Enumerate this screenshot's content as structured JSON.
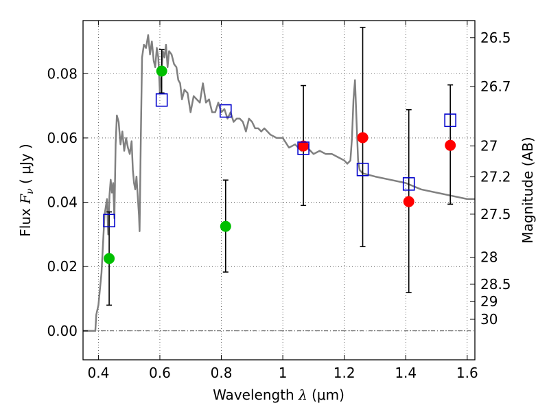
{
  "chart_data": {
    "type": "scatter",
    "xlabel_prefix": "Wavelength  ",
    "xlabel_symbol": "λ",
    "xlabel_unit": " (μm)",
    "ylabel_prefix": "Flux  ",
    "ylabel_symbol": "F",
    "ylabel_sub": "ν",
    "ylabel_unit": "  ( μJy )",
    "y2label": "Magnitude (AB)",
    "xlim": [
      0.35,
      1.625
    ],
    "ylim": [
      -0.009,
      0.0965
    ],
    "xticks": [
      0.4,
      0.6,
      0.8,
      1.0,
      1.2,
      1.4,
      1.6
    ],
    "xtick_labels": [
      "0.4",
      "0.6",
      "0.8",
      "1",
      "1.2",
      "1.4",
      "1.6"
    ],
    "yticks": [
      0.0,
      0.02,
      0.04,
      0.06,
      0.08
    ],
    "ytick_labels": [
      "0.00",
      "0.02",
      "0.04",
      "0.06",
      "0.08"
    ],
    "y2ticks": [
      {
        "label": "26.5",
        "flux": 0.0912
      },
      {
        "label": "26.7",
        "flux": 0.076
      },
      {
        "label": "27",
        "flux": 0.0575
      },
      {
        "label": "27.2",
        "flux": 0.0479
      },
      {
        "label": "27.5",
        "flux": 0.0363
      },
      {
        "label": "28",
        "flux": 0.0229
      },
      {
        "label": "28.5",
        "flux": 0.0145
      },
      {
        "label": "29",
        "flux": 0.0091
      },
      {
        "label": "30",
        "flux": 0.0036
      }
    ],
    "grid": true,
    "series": [
      {
        "name": "model SED",
        "kind": "line",
        "color": "#808080",
        "x": [
          0.35,
          0.39,
          0.393,
          0.4,
          0.41,
          0.42,
          0.428,
          0.432,
          0.436,
          0.44,
          0.444,
          0.448,
          0.452,
          0.456,
          0.46,
          0.466,
          0.472,
          0.478,
          0.484,
          0.49,
          0.496,
          0.502,
          0.508,
          0.512,
          0.516,
          0.52,
          0.524,
          0.528,
          0.532,
          0.534,
          0.538,
          0.542,
          0.548,
          0.555,
          0.562,
          0.568,
          0.574,
          0.58,
          0.585,
          0.59,
          0.595,
          0.6,
          0.605,
          0.61,
          0.615,
          0.62,
          0.625,
          0.63,
          0.638,
          0.646,
          0.654,
          0.66,
          0.666,
          0.672,
          0.68,
          0.69,
          0.7,
          0.71,
          0.72,
          0.73,
          0.74,
          0.75,
          0.76,
          0.77,
          0.78,
          0.79,
          0.8,
          0.81,
          0.82,
          0.83,
          0.84,
          0.85,
          0.86,
          0.87,
          0.88,
          0.89,
          0.9,
          0.91,
          0.92,
          0.93,
          0.94,
          0.95,
          0.96,
          0.98,
          1.0,
          1.02,
          1.04,
          1.06,
          1.08,
          1.1,
          1.12,
          1.14,
          1.16,
          1.18,
          1.2,
          1.21,
          1.22,
          1.225,
          1.23,
          1.235,
          1.24,
          1.245,
          1.25,
          1.26,
          1.3,
          1.35,
          1.4,
          1.45,
          1.5,
          1.55,
          1.6,
          1.625
        ],
        "y": [
          0.0,
          0.0,
          0.005,
          0.008,
          0.018,
          0.036,
          0.041,
          0.03,
          0.042,
          0.047,
          0.043,
          0.046,
          0.035,
          0.058,
          0.067,
          0.065,
          0.058,
          0.062,
          0.056,
          0.06,
          0.057,
          0.055,
          0.059,
          0.05,
          0.046,
          0.044,
          0.048,
          0.042,
          0.036,
          0.031,
          0.06,
          0.085,
          0.089,
          0.088,
          0.092,
          0.086,
          0.09,
          0.084,
          0.082,
          0.088,
          0.085,
          0.074,
          0.08,
          0.087,
          0.085,
          0.089,
          0.082,
          0.087,
          0.086,
          0.083,
          0.082,
          0.078,
          0.077,
          0.072,
          0.075,
          0.074,
          0.068,
          0.073,
          0.072,
          0.071,
          0.077,
          0.071,
          0.072,
          0.068,
          0.068,
          0.071,
          0.068,
          0.069,
          0.066,
          0.068,
          0.065,
          0.066,
          0.066,
          0.065,
          0.062,
          0.066,
          0.065,
          0.063,
          0.063,
          0.062,
          0.063,
          0.062,
          0.061,
          0.06,
          0.06,
          0.057,
          0.058,
          0.056,
          0.057,
          0.055,
          0.056,
          0.055,
          0.055,
          0.054,
          0.053,
          0.052,
          0.053,
          0.06,
          0.072,
          0.078,
          0.065,
          0.053,
          0.05,
          0.049,
          0.048,
          0.047,
          0.046,
          0.044,
          0.043,
          0.042,
          0.041,
          0.041
        ]
      },
      {
        "name": "observed (green)",
        "kind": "points",
        "color": "#00bf00",
        "x": [
          0.435,
          0.606,
          0.814
        ],
        "y": [
          0.0225,
          0.0808,
          0.0325
        ],
        "yerr_low": [
          0.008,
          0.074,
          0.0183
        ],
        "yerr_high": [
          0.037,
          0.0875,
          0.0469
        ]
      },
      {
        "name": "observed (red)",
        "kind": "points",
        "color": "#ff0000",
        "x": [
          1.067,
          1.26,
          1.41,
          1.545
        ],
        "y": [
          0.0575,
          0.0601,
          0.0402,
          0.0577
        ],
        "yerr_low": [
          0.039,
          0.0262,
          0.0119,
          0.0394
        ],
        "yerr_high": [
          0.0763,
          0.0944,
          0.0688,
          0.0765
        ]
      },
      {
        "name": "model photometry",
        "kind": "squares",
        "color": "#0000cc",
        "x": [
          0.435,
          0.606,
          0.814,
          1.067,
          1.26,
          1.41,
          1.545
        ],
        "y": [
          0.0343,
          0.0718,
          0.0684,
          0.0568,
          0.0502,
          0.0457,
          0.0655
        ]
      }
    ]
  }
}
